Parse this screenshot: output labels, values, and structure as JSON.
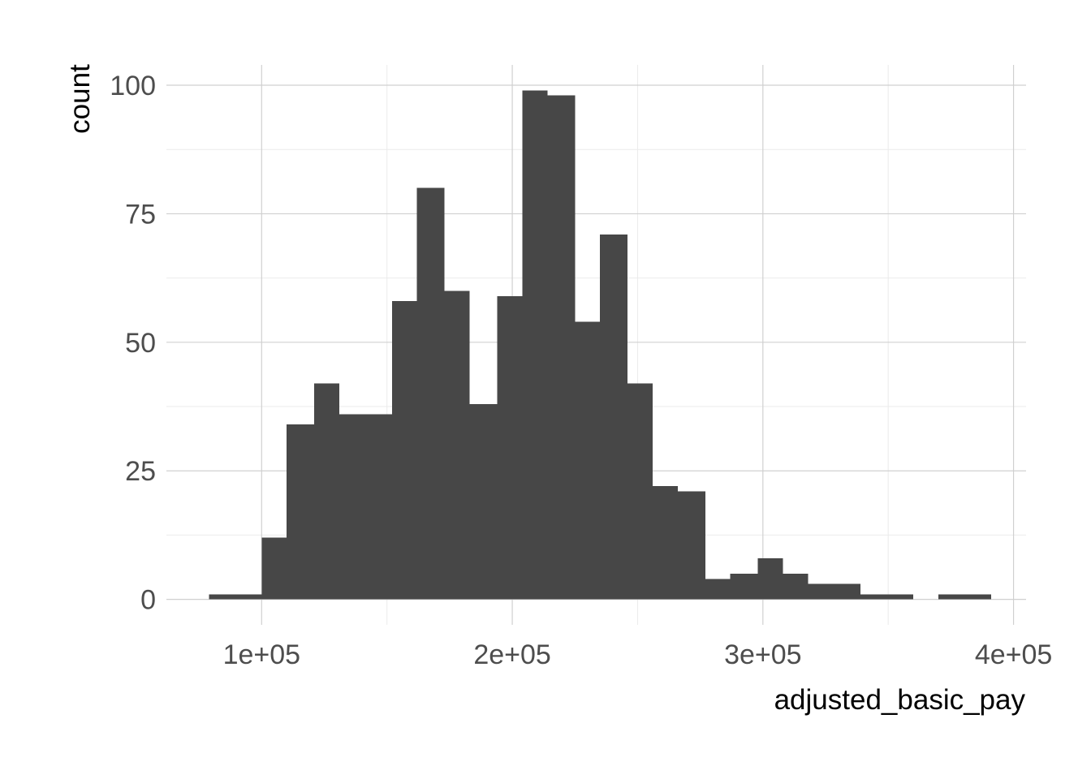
{
  "chart_data": {
    "type": "bar",
    "title": "",
    "xlabel": "adjusted_basic_pay",
    "ylabel": "count",
    "bins": [
      {
        "x0": 79000,
        "x1": 89000,
        "count": 1
      },
      {
        "x0": 89000,
        "x1": 100000,
        "count": 1
      },
      {
        "x0": 100000,
        "x1": 110000,
        "count": 12
      },
      {
        "x0": 110000,
        "x1": 121000,
        "count": 34
      },
      {
        "x0": 121000,
        "x1": 131000,
        "count": 42
      },
      {
        "x0": 131000,
        "x1": 142000,
        "count": 36
      },
      {
        "x0": 142000,
        "x1": 152000,
        "count": 36
      },
      {
        "x0": 152000,
        "x1": 162000,
        "count": 58
      },
      {
        "x0": 162000,
        "x1": 173000,
        "count": 80
      },
      {
        "x0": 173000,
        "x1": 183000,
        "count": 60
      },
      {
        "x0": 183000,
        "x1": 194000,
        "count": 38
      },
      {
        "x0": 194000,
        "x1": 204000,
        "count": 59
      },
      {
        "x0": 204000,
        "x1": 214000,
        "count": 99
      },
      {
        "x0": 214000,
        "x1": 225000,
        "count": 98
      },
      {
        "x0": 225000,
        "x1": 235000,
        "count": 54
      },
      {
        "x0": 235000,
        "x1": 246000,
        "count": 71
      },
      {
        "x0": 246000,
        "x1": 256000,
        "count": 42
      },
      {
        "x0": 256000,
        "x1": 266000,
        "count": 22
      },
      {
        "x0": 266000,
        "x1": 277000,
        "count": 21
      },
      {
        "x0": 277000,
        "x1": 287000,
        "count": 4
      },
      {
        "x0": 287000,
        "x1": 298000,
        "count": 5
      },
      {
        "x0": 298000,
        "x1": 308000,
        "count": 8
      },
      {
        "x0": 308000,
        "x1": 318000,
        "count": 5
      },
      {
        "x0": 318000,
        "x1": 329000,
        "count": 3
      },
      {
        "x0": 329000,
        "x1": 339000,
        "count": 3
      },
      {
        "x0": 339000,
        "x1": 350000,
        "count": 1
      },
      {
        "x0": 350000,
        "x1": 360000,
        "count": 1
      },
      {
        "x0": 360000,
        "x1": 370000,
        "count": 0
      },
      {
        "x0": 370000,
        "x1": 381000,
        "count": 1
      },
      {
        "x0": 381000,
        "x1": 391000,
        "count": 1
      }
    ],
    "xlim": [
      62000,
      405000
    ],
    "ylim": [
      -4.95,
      103.95
    ],
    "x_ticks": [
      {
        "value": 100000,
        "label": "1e+05"
      },
      {
        "value": 200000,
        "label": "2e+05"
      },
      {
        "value": 300000,
        "label": "3e+05"
      },
      {
        "value": 400000,
        "label": "4e+05"
      }
    ],
    "y_ticks": [
      {
        "value": 0,
        "label": "0"
      },
      {
        "value": 25,
        "label": "25"
      },
      {
        "value": 50,
        "label": "50"
      },
      {
        "value": 75,
        "label": "75"
      },
      {
        "value": 100,
        "label": "100"
      }
    ],
    "x_minor_ticks": [
      150000,
      250000,
      350000
    ],
    "y_minor_ticks": [
      12.5,
      37.5,
      62.5,
      87.5
    ],
    "grid": true,
    "legend": "none",
    "bar_color": "#474747",
    "background_color": "#ffffff"
  }
}
